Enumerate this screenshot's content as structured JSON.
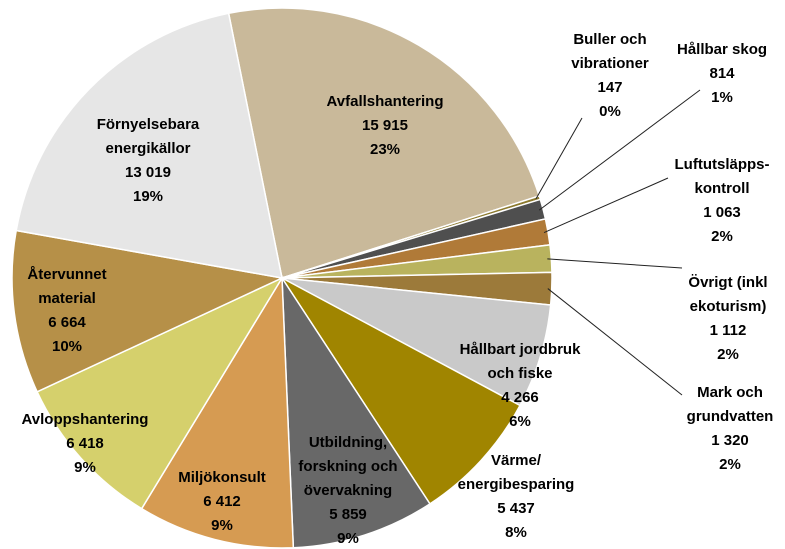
{
  "chart_data": {
    "type": "pie",
    "categories": [
      "Avfallshantering",
      "Buller och\nvibrationer",
      "Hållbar skog",
      "Luftutsläpps-\nkontroll",
      "Övrigt (inkl\nekoturism)",
      "Mark och\ngrundvatten",
      "Hållbart jordbruk\noch fiske",
      "Värme/\nenergibesparing",
      "Utbildning,\nforskning och\növervakning",
      "Miljökonsult",
      "Avloppshantering",
      "Återvunnet\nmaterial",
      "Förnyelsebara\nenergikällor"
    ],
    "values": [
      15915,
      147,
      814,
      1063,
      1112,
      1320,
      4266,
      5437,
      5859,
      6412,
      6418,
      6664,
      13019
    ],
    "value_labels": [
      "15 915",
      "147",
      "814",
      "1 063",
      "1 112",
      "1 320",
      "4 266",
      "5 437",
      "5 859",
      "6 412",
      "6 418",
      "6 664",
      "13 019"
    ],
    "percent_labels": [
      "23%",
      "0%",
      "1%",
      "2%",
      "2%",
      "2%",
      "6%",
      "8%",
      "9%",
      "9%",
      "9%",
      "10%",
      "19%"
    ],
    "colors": [
      "#c9b99a",
      "#8c7a2e",
      "#4f4f4f",
      "#b07a38",
      "#b9b35e",
      "#9c7a3a",
      "#c9c9c9",
      "#a08500",
      "#686868",
      "#d69b52",
      "#d5d06c",
      "#b69048",
      "#e6e6e6"
    ]
  }
}
